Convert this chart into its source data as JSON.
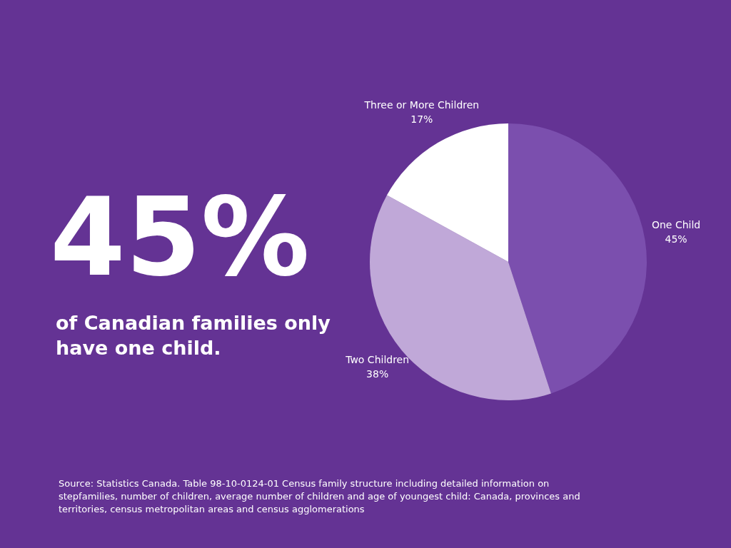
{
  "chart_data": {
    "type": "pie",
    "title": "45%",
    "subtitle": "of Canadian families only have one child.",
    "categories": [
      "One Child",
      "Two Children",
      "Three or More Children"
    ],
    "values": [
      45,
      38,
      17
    ],
    "colors": [
      "#7b4fae",
      "#c0a8d8",
      "#ffffff"
    ],
    "value_labels": [
      "45%",
      "38%",
      "17%"
    ],
    "annotations": [
      "Source: Statistics Canada. Table 98-10-0124-01 Census family structure including detailed information on stepfamilies, number of children, average number of children and age of youngest child: Canada, provinces and territories, census metropolitan areas and census agglomerations"
    ]
  }
}
